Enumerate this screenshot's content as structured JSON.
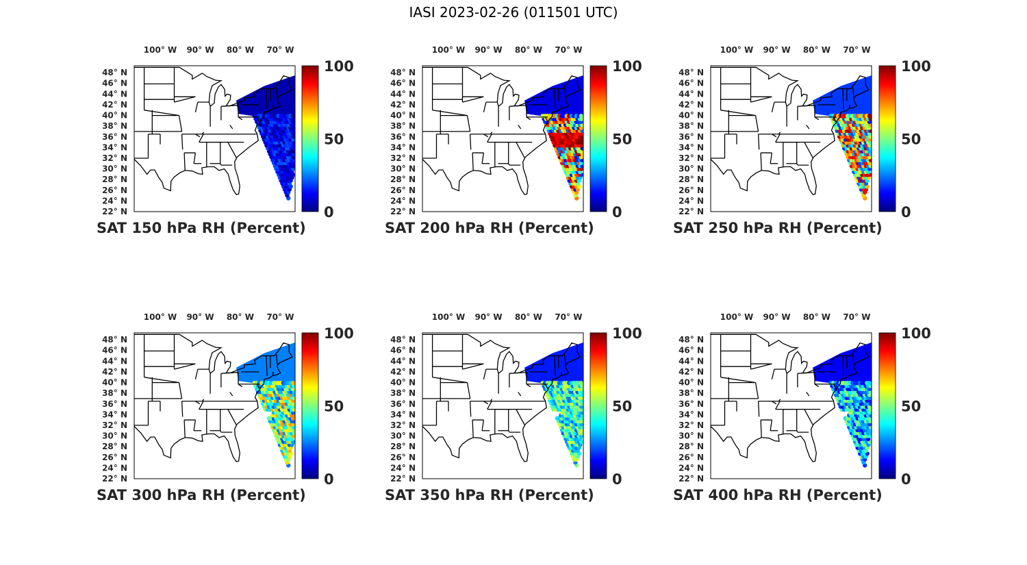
{
  "figure": {
    "title": "IASI 2023-02-26 (011501 UTC)"
  },
  "lon_ticks": [
    "100",
    "90",
    "80",
    "70"
  ],
  "lon_suffix": "W",
  "lat_ticks": [
    "48",
    "46",
    "44",
    "42",
    "40",
    "38",
    "36",
    "34",
    "32",
    "30",
    "28",
    "26",
    "24",
    "22"
  ],
  "lat_suffix": "N",
  "degree_symbol": "°",
  "colorbar": {
    "ticks": [
      "100",
      "50",
      "0"
    ],
    "range": [
      0,
      100
    ],
    "colormap": "jet"
  },
  "panels": [
    {
      "caption": "SAT 150 hPa RH (Percent)",
      "level_hpa": 150,
      "description_values": {
        "northeast_rh": 5,
        "offshore_rh_range": [
          2,
          22
        ]
      }
    },
    {
      "caption": "SAT 200 hPa RH (Percent)",
      "level_hpa": 200,
      "description_values": {
        "northeast_rh": 10,
        "offshore_rh_range": [
          10,
          100
        ]
      }
    },
    {
      "caption": "SAT 250 hPa RH (Percent)",
      "level_hpa": 250,
      "description_values": {
        "northeast_rh": 18,
        "offshore_rh_range": [
          15,
          100
        ]
      }
    },
    {
      "caption": "SAT 300 hPa RH (Percent)",
      "level_hpa": 300,
      "description_values": {
        "northeast_rh": 25,
        "offshore_rh_range": [
          20,
          75
        ]
      }
    },
    {
      "caption": "SAT 350 hPa RH (Percent)",
      "level_hpa": 350,
      "description_values": {
        "northeast_rh": 15,
        "offshore_rh_range": [
          20,
          60
        ]
      }
    },
    {
      "caption": "SAT 400 hPa RH (Percent)",
      "level_hpa": 400,
      "description_values": {
        "northeast_rh": 12,
        "offshore_rh_range": [
          10,
          55
        ]
      }
    }
  ],
  "colors": {
    "jet_stops": [
      "#00007f",
      "#0000ff",
      "#007fff",
      "#00ffff",
      "#7fff7f",
      "#ffff00",
      "#ff7f00",
      "#ff0000",
      "#7f0000"
    ],
    "outline": "#000000",
    "text": "#262626"
  }
}
